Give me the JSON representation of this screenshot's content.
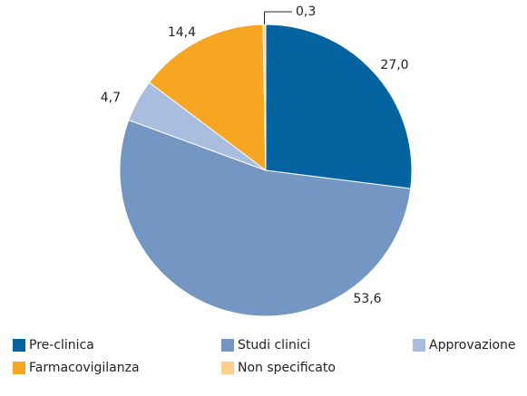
{
  "chart_data": {
    "type": "pie",
    "categories": [
      "Pre-clinica",
      "Studi clinici",
      "Approvazione",
      "Farmacovigilanza",
      "Non specificato"
    ],
    "values": [
      27.0,
      53.6,
      4.7,
      14.4,
      0.3
    ],
    "value_labels": [
      "27,0",
      "53,6",
      "4,7",
      "14,4",
      "0,3"
    ],
    "colors": [
      "#0563a0",
      "#7396c2",
      "#a9bddf",
      "#f6a623",
      "#fcd08c"
    ],
    "legend": "bottom"
  }
}
